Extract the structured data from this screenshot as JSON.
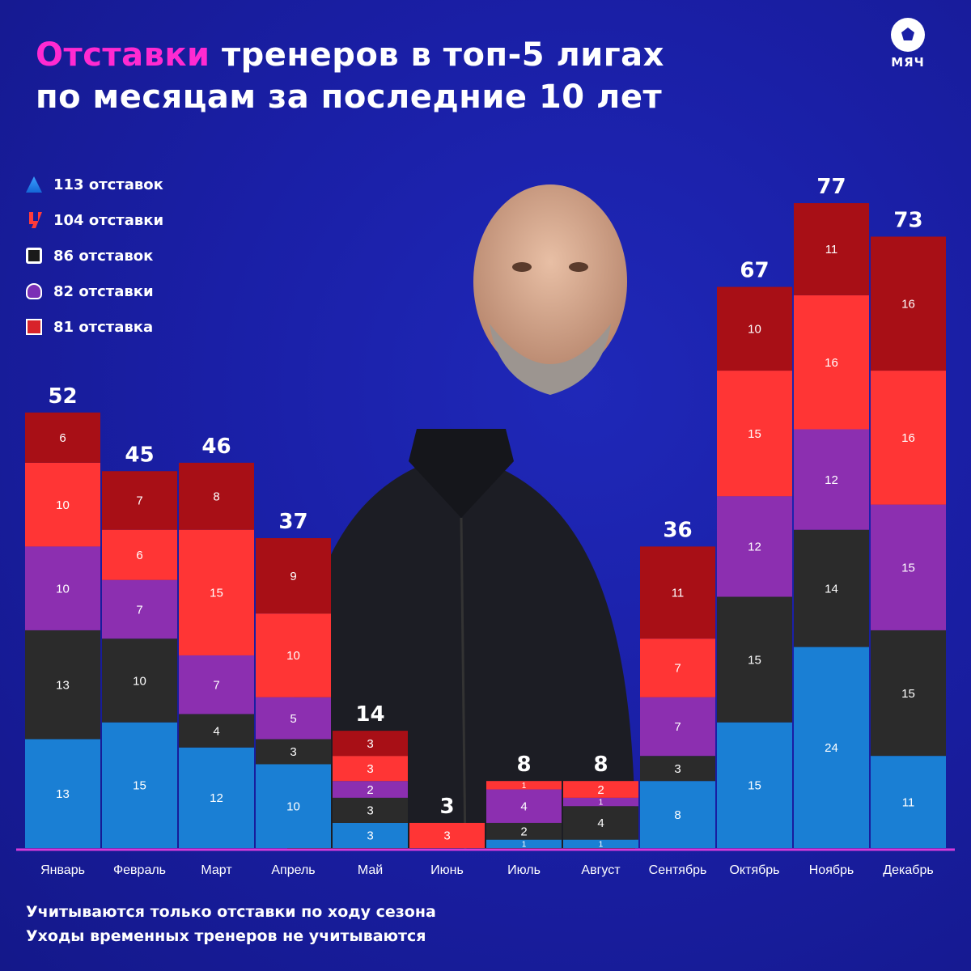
{
  "title": {
    "accent": "Отставки",
    "rest_line1": " тренеров в топ-5 лигах",
    "line2": "по месяцам за последние 10 лет"
  },
  "brand": {
    "name": "МЯЧ",
    "icon": "soccer-ball-icon"
  },
  "legend": [
    {
      "icon": "serie-a-icon",
      "text": "113 отставок",
      "color": "#1a7fd4"
    },
    {
      "icon": "laliga-icon",
      "text": "104 отставки",
      "color": "#ff3535"
    },
    {
      "icon": "ligue1-icon",
      "text": "86 отставок",
      "color": "#2b2b2b"
    },
    {
      "icon": "premier-league-icon",
      "text": "82 отставки",
      "color": "#8c2fb0"
    },
    {
      "icon": "bundesliga-icon",
      "text": "81 отставка",
      "color": "#a80f16"
    }
  ],
  "chart_data": {
    "type": "bar",
    "stacked": true,
    "title": "Отставки тренеров в топ-5 лигах по месяцам за последние 10 лет",
    "categories": [
      "Январь",
      "Февраль",
      "Март",
      "Апрель",
      "Май",
      "Июнь",
      "Июль",
      "Август",
      "Сентябрь",
      "Октябрь",
      "Ноябрь",
      "Декабрь"
    ],
    "totals": [
      52,
      45,
      46,
      37,
      14,
      3,
      8,
      8,
      36,
      67,
      77,
      73
    ],
    "series": [
      {
        "name": "Серия A",
        "color": "#1a7fd4",
        "values": [
          13,
          15,
          12,
          10,
          3,
          0,
          1,
          1,
          8,
          15,
          24,
          11
        ]
      },
      {
        "name": "Лига 1",
        "color": "#2b2b2b",
        "values": [
          13,
          10,
          4,
          3,
          3,
          0,
          2,
          4,
          3,
          15,
          14,
          15
        ]
      },
      {
        "name": "АПЛ",
        "color": "#8c2fb0",
        "values": [
          10,
          7,
          7,
          5,
          2,
          0,
          4,
          1,
          7,
          12,
          12,
          15
        ]
      },
      {
        "name": "Ла Лига",
        "color": "#ff3535",
        "values": [
          10,
          6,
          15,
          10,
          3,
          3,
          1,
          2,
          7,
          15,
          16,
          16
        ]
      },
      {
        "name": "Бундеслига",
        "color": "#a80f16",
        "values": [
          6,
          7,
          8,
          9,
          3,
          0,
          0,
          0,
          11,
          10,
          11,
          16
        ]
      }
    ],
    "ylim": [
      0,
      77
    ],
    "axis_color": "#d63bdb"
  },
  "notes": {
    "line1": "Учитываются только отставки по ходу сезона",
    "line2": "Уходы временных тренеров не учитываются"
  }
}
